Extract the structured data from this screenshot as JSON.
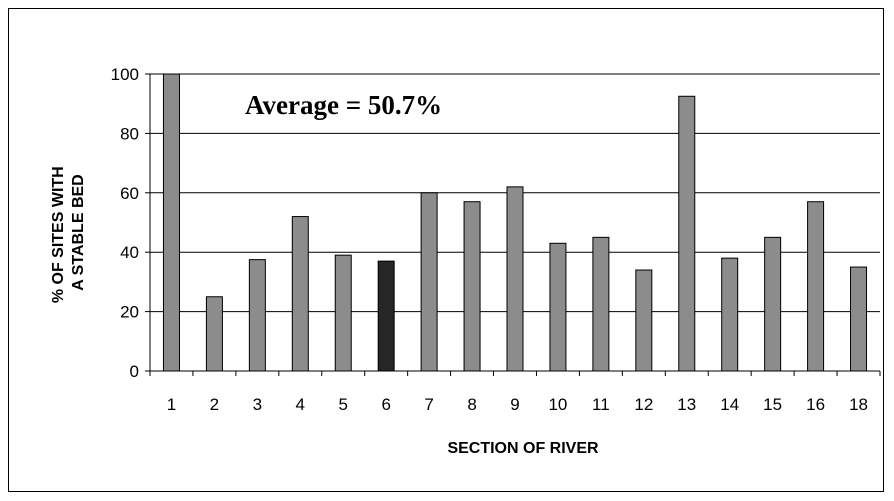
{
  "chart_data": {
    "type": "bar",
    "title": "",
    "xlabel": "SECTION OF RIVER",
    "ylabel_lines": [
      "% OF SITES WITH",
      "A STABLE BED"
    ],
    "annotation": "Average = 50.7%",
    "categories": [
      "1",
      "2",
      "3",
      "4",
      "5",
      "6",
      "7",
      "8",
      "9",
      "10",
      "11",
      "12",
      "13",
      "14",
      "15",
      "16",
      "18"
    ],
    "values": [
      100,
      25,
      37.5,
      52,
      39,
      37,
      60,
      57,
      62,
      43,
      45,
      34,
      92.5,
      38,
      45,
      57,
      35
    ],
    "highlight_index": 5,
    "ylim": [
      0,
      100
    ],
    "yticks": [
      "0",
      "20",
      "40",
      "60",
      "80",
      "100"
    ],
    "grid": true,
    "legend": "none",
    "colors": {
      "bar": "#8c8c8c",
      "highlight": "#262626",
      "grid": "#000000"
    }
  }
}
